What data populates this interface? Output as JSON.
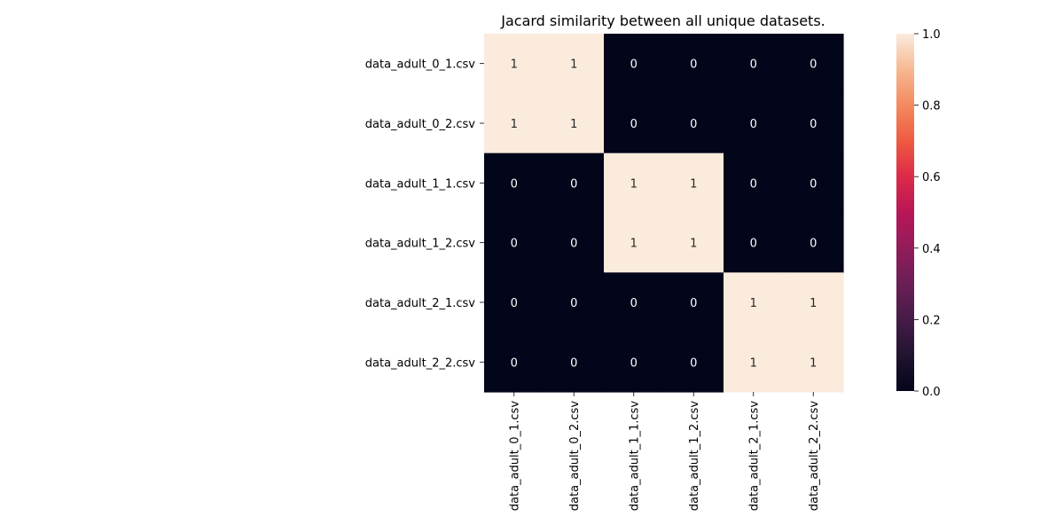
{
  "chart_data": {
    "type": "heatmap",
    "title": "Jacard similarity between all unique datasets.",
    "xlabel": "",
    "ylabel": "",
    "row_labels": [
      "data_adult_0_1.csv",
      "data_adult_0_2.csv",
      "data_adult_1_1.csv",
      "data_adult_1_2.csv",
      "data_adult_2_1.csv",
      "data_adult_2_2.csv"
    ],
    "col_labels": [
      "data_adult_0_1.csv",
      "data_adult_0_2.csv",
      "data_adult_1_1.csv",
      "data_adult_1_2.csv",
      "data_adult_2_1.csv",
      "data_adult_2_2.csv"
    ],
    "values": [
      [
        1,
        1,
        0,
        0,
        0,
        0
      ],
      [
        1,
        1,
        0,
        0,
        0,
        0
      ],
      [
        0,
        0,
        1,
        1,
        0,
        0
      ],
      [
        0,
        0,
        1,
        1,
        0,
        0
      ],
      [
        0,
        0,
        0,
        0,
        1,
        1
      ],
      [
        0,
        0,
        0,
        0,
        1,
        1
      ]
    ],
    "annotations": true,
    "colorbar": {
      "range": [
        0.0,
        1.0
      ],
      "ticks": [
        "0.0",
        "0.2",
        "0.4",
        "0.6",
        "0.8",
        "1.0"
      ],
      "colormap": "rocket",
      "low_color": "#03051a",
      "high_color": "#faebdd"
    },
    "grid": false
  }
}
